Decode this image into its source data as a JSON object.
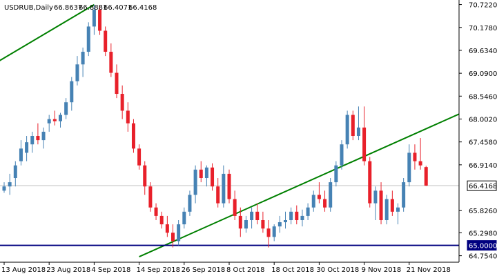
{
  "colors": {
    "background": "#ffffff",
    "bull": "#4682b4",
    "bear": "#e8202a",
    "trendline": "#008000",
    "support": "#000080",
    "current_price_line": "#c0c0c0",
    "current_price_badge_bg": "#ffffff",
    "support_badge_bg": "#000080",
    "axis": "#000000"
  },
  "chart_data": {
    "type": "candlestick",
    "title": "USDRUB,Daily",
    "ohlc_header": [
      "66.8637",
      "66.8881",
      "66.4071",
      "66.4168"
    ],
    "ylim": [
      64.6,
      70.83
    ],
    "y_ticks": [
      "70.7220",
      "70.1780",
      "69.6340",
      "69.0900",
      "68.5460",
      "68.0020",
      "67.4580",
      "66.9140",
      "65.8260",
      "65.2980",
      "64.7540"
    ],
    "x_ticks": [
      {
        "index": 0,
        "label": "13 Aug 2018"
      },
      {
        "index": 8,
        "label": "23 Aug 2018"
      },
      {
        "index": 16,
        "label": "4 Sep 2018"
      },
      {
        "index": 24,
        "label": "14 Sep 2018"
      },
      {
        "index": 32,
        "label": "26 Sep 2018"
      },
      {
        "index": 40,
        "label": "8 Oct 2018"
      },
      {
        "index": 48,
        "label": "18 Oct 2018"
      },
      {
        "index": 56,
        "label": "30 Oct 2018"
      },
      {
        "index": 64,
        "label": "9 Nov 2018"
      },
      {
        "index": 72,
        "label": "21 Nov 2018"
      }
    ],
    "candles": [
      [
        66.3,
        66.5,
        66.25,
        66.4
      ],
      [
        66.4,
        66.7,
        66.2,
        66.5
      ],
      [
        66.6,
        67.0,
        66.4,
        66.9
      ],
      [
        67.0,
        67.5,
        66.9,
        67.3
      ],
      [
        67.2,
        67.6,
        67.0,
        67.45
      ],
      [
        67.4,
        67.7,
        67.2,
        67.6
      ],
      [
        67.6,
        67.9,
        67.4,
        67.5
      ],
      [
        67.5,
        67.8,
        67.3,
        67.7
      ],
      [
        67.9,
        68.1,
        67.7,
        68.0
      ],
      [
        68.0,
        68.2,
        67.85,
        67.95
      ],
      [
        67.95,
        68.15,
        67.8,
        68.1
      ],
      [
        68.1,
        68.5,
        68.0,
        68.4
      ],
      [
        68.4,
        69.0,
        68.2,
        68.9
      ],
      [
        68.9,
        69.5,
        68.8,
        69.3
      ],
      [
        69.3,
        69.7,
        69.0,
        69.6
      ],
      [
        69.6,
        70.3,
        69.5,
        70.2
      ],
      [
        70.2,
        70.72,
        70.0,
        70.6
      ],
      [
        70.6,
        70.7,
        70.0,
        70.1
      ],
      [
        70.1,
        70.2,
        69.5,
        69.6
      ],
      [
        69.6,
        69.8,
        69.0,
        69.1
      ],
      [
        69.1,
        69.3,
        68.5,
        68.6
      ],
      [
        68.6,
        68.8,
        68.0,
        68.2
      ],
      [
        68.2,
        68.4,
        67.7,
        67.9
      ],
      [
        67.9,
        68.0,
        67.2,
        67.3
      ],
      [
        67.3,
        67.4,
        66.8,
        66.9
      ],
      [
        66.9,
        67.0,
        66.2,
        66.4
      ],
      [
        66.4,
        66.5,
        65.8,
        65.9
      ],
      [
        65.9,
        66.0,
        65.6,
        65.7
      ],
      [
        65.7,
        65.8,
        65.4,
        65.5
      ],
      [
        65.5,
        65.7,
        65.2,
        65.3
      ],
      [
        65.3,
        65.5,
        64.95,
        65.1
      ],
      [
        65.1,
        65.6,
        65.0,
        65.5
      ],
      [
        65.5,
        65.9,
        65.4,
        65.8
      ],
      [
        65.8,
        66.3,
        65.7,
        66.2
      ],
      [
        66.2,
        66.9,
        66.0,
        66.8
      ],
      [
        66.8,
        67.0,
        66.5,
        66.6
      ],
      [
        66.6,
        66.9,
        66.4,
        66.85
      ],
      [
        66.85,
        66.95,
        66.3,
        66.4
      ],
      [
        66.4,
        66.6,
        65.9,
        66.0
      ],
      [
        66.0,
        66.9,
        65.9,
        66.7
      ],
      [
        66.7,
        66.8,
        66.0,
        66.1
      ],
      [
        66.1,
        66.3,
        65.6,
        65.7
      ],
      [
        65.7,
        65.9,
        65.2,
        65.4
      ],
      [
        65.4,
        65.7,
        65.3,
        65.6
      ],
      [
        65.6,
        65.9,
        65.4,
        65.8
      ],
      [
        65.8,
        66.0,
        65.5,
        65.6
      ],
      [
        65.6,
        65.8,
        65.3,
        65.4
      ],
      [
        65.4,
        65.6,
        64.95,
        65.2
      ],
      [
        65.2,
        65.5,
        65.1,
        65.45
      ],
      [
        65.45,
        65.7,
        65.3,
        65.55
      ],
      [
        65.55,
        65.8,
        65.4,
        65.6
      ],
      [
        65.6,
        65.9,
        65.5,
        65.8
      ],
      [
        65.8,
        65.95,
        65.5,
        65.6
      ],
      [
        65.6,
        65.85,
        65.45,
        65.7
      ],
      [
        65.7,
        66.0,
        65.6,
        65.9
      ],
      [
        65.9,
        66.3,
        65.8,
        66.2
      ],
      [
        66.2,
        66.5,
        66.0,
        66.1
      ],
      [
        66.1,
        66.3,
        65.8,
        65.9
      ],
      [
        65.9,
        66.6,
        65.8,
        66.5
      ],
      [
        66.5,
        67.0,
        66.4,
        66.9
      ],
      [
        66.9,
        67.5,
        66.8,
        67.4
      ],
      [
        67.4,
        68.2,
        67.3,
        68.1
      ],
      [
        68.1,
        68.2,
        67.5,
        67.6
      ],
      [
        67.6,
        68.3,
        67.5,
        67.8
      ],
      [
        67.8,
        68.3,
        66.9,
        67.0
      ],
      [
        67.0,
        67.1,
        65.9,
        66.0
      ],
      [
        66.0,
        66.4,
        65.6,
        66.3
      ],
      [
        66.3,
        66.5,
        65.5,
        65.6
      ],
      [
        65.6,
        66.2,
        65.5,
        66.1
      ],
      [
        66.1,
        66.3,
        65.7,
        65.8
      ],
      [
        65.8,
        66.0,
        65.5,
        65.9
      ],
      [
        65.9,
        66.6,
        65.8,
        66.5
      ],
      [
        66.5,
        67.4,
        66.4,
        67.2
      ],
      [
        67.2,
        67.4,
        66.8,
        67.0
      ],
      [
        67.0,
        67.55,
        66.8,
        66.9
      ],
      [
        66.86,
        66.89,
        66.41,
        66.42
      ]
    ],
    "trendlines": [
      {
        "kind": "channel-upper",
        "from": {
          "index": -1.3,
          "price": 69.35
        },
        "to": {
          "index": 16,
          "price": 70.72
        }
      },
      {
        "kind": "channel-lower",
        "from": {
          "index": 24,
          "price": 64.73
        },
        "to": {
          "index": 84,
          "price": 68.12
        }
      },
      {
        "kind": "support",
        "from": {
          "index": -1.3,
          "price": 65.0
        },
        "to": {
          "index": 84,
          "price": 65.0
        }
      }
    ],
    "price_badges": [
      {
        "name": "current-price-badge",
        "text": "66.4168",
        "price": 66.4168
      },
      {
        "name": "support-badge",
        "text": "65.0000",
        "price": 65.0
      }
    ]
  }
}
